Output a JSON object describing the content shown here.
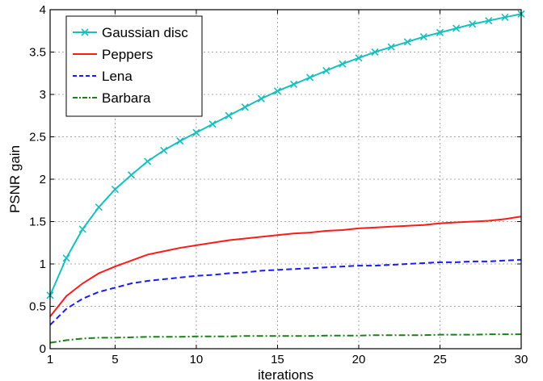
{
  "chart_data": {
    "type": "line",
    "title": "",
    "xlabel": "iterations",
    "ylabel": "PSNR gain",
    "xlim": [
      1,
      30
    ],
    "ylim": [
      0,
      4
    ],
    "xticks": [
      1,
      5,
      10,
      15,
      20,
      25,
      30
    ],
    "yticks": [
      0,
      0.5,
      1,
      1.5,
      2,
      2.5,
      3,
      3.5,
      4
    ],
    "xtick_labels": [
      "1",
      "5",
      "10",
      "15",
      "20",
      "25",
      "30"
    ],
    "ytick_labels": [
      "0",
      "0.5",
      "1",
      "1.5",
      "2",
      "2.5",
      "3",
      "3.5",
      "4"
    ],
    "grid": true,
    "legend_position": "top-left",
    "x": [
      1,
      2,
      3,
      4,
      5,
      6,
      7,
      8,
      9,
      10,
      11,
      12,
      13,
      14,
      15,
      16,
      17,
      18,
      19,
      20,
      21,
      22,
      23,
      24,
      25,
      26,
      27,
      28,
      29,
      30
    ],
    "series": [
      {
        "name": "Gaussian disc",
        "color": "#17bfbf",
        "line_style": "solid",
        "marker": "x",
        "values": [
          0.63,
          1.07,
          1.41,
          1.67,
          1.88,
          2.05,
          2.21,
          2.34,
          2.45,
          2.55,
          2.65,
          2.75,
          2.85,
          2.95,
          3.04,
          3.12,
          3.2,
          3.28,
          3.36,
          3.43,
          3.5,
          3.56,
          3.62,
          3.68,
          3.73,
          3.78,
          3.83,
          3.87,
          3.91,
          3.95
        ]
      },
      {
        "name": "Peppers",
        "color": "#ff1a1a",
        "line_style": "solid",
        "marker": "none",
        "values": [
          0.38,
          0.62,
          0.77,
          0.89,
          0.97,
          1.04,
          1.11,
          1.15,
          1.19,
          1.22,
          1.25,
          1.28,
          1.3,
          1.32,
          1.34,
          1.36,
          1.37,
          1.39,
          1.4,
          1.42,
          1.43,
          1.44,
          1.45,
          1.46,
          1.48,
          1.49,
          1.5,
          1.51,
          1.53,
          1.56
        ]
      },
      {
        "name": "Lena",
        "color": "#1a1aff",
        "line_style": "dashed",
        "marker": "none",
        "values": [
          0.28,
          0.47,
          0.59,
          0.67,
          0.72,
          0.77,
          0.8,
          0.82,
          0.84,
          0.86,
          0.87,
          0.89,
          0.9,
          0.92,
          0.93,
          0.94,
          0.95,
          0.96,
          0.97,
          0.98,
          0.98,
          0.99,
          1.0,
          1.01,
          1.02,
          1.02,
          1.03,
          1.03,
          1.04,
          1.05
        ]
      },
      {
        "name": "Barbara",
        "color": "#1a801a",
        "line_style": "dashdot",
        "marker": "none",
        "values": [
          0.07,
          0.1,
          0.12,
          0.13,
          0.13,
          0.135,
          0.14,
          0.14,
          0.14,
          0.145,
          0.145,
          0.145,
          0.15,
          0.15,
          0.15,
          0.15,
          0.15,
          0.155,
          0.155,
          0.155,
          0.16,
          0.16,
          0.16,
          0.16,
          0.165,
          0.165,
          0.165,
          0.17,
          0.17,
          0.17
        ]
      }
    ]
  }
}
